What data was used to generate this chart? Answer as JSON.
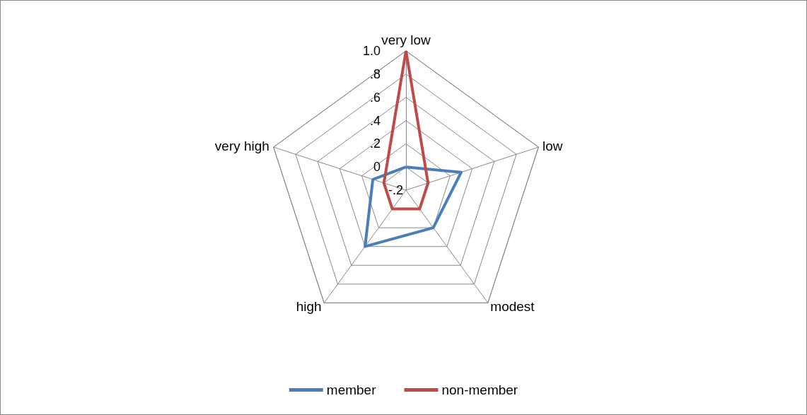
{
  "chart_data": {
    "type": "radar",
    "categories": [
      "very low",
      "low",
      "modest",
      "high",
      "very high"
    ],
    "series": [
      {
        "name": "member",
        "color": "#4a7ebb",
        "values": [
          0.0,
          0.3,
          0.2,
          0.4,
          0.1
        ]
      },
      {
        "name": "non-member",
        "color": "#be4b48",
        "values": [
          1.0,
          0.0,
          0.0,
          0.0,
          0.0
        ]
      }
    ],
    "ylim": [
      -0.2,
      1.0
    ],
    "yticks": [
      {
        "value": -0.2,
        "label": "-.2"
      },
      {
        "value": 0,
        "label": "0"
      },
      {
        "value": 0.2,
        "label": ".2"
      },
      {
        "value": 0.4,
        "label": ".4"
      },
      {
        "value": 0.6,
        "label": ".6"
      },
      {
        "value": 0.8,
        "label": ".8"
      },
      {
        "value": 1.0,
        "label": "1.0"
      }
    ],
    "marker": "none",
    "legend": "bottom",
    "grid": true
  }
}
